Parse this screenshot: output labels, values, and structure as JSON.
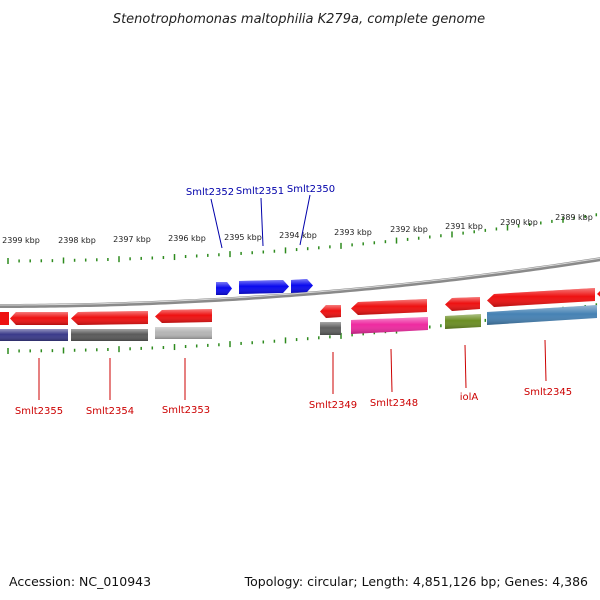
{
  "title": "Stenotrophomonas maltophilia K279a, complete genome",
  "ruler": {
    "tick_color": "#2e8b1e",
    "labels": [
      "2399 kbp",
      "2398 kbp",
      "2397 kbp",
      "2396 kbp",
      "2395 kbp",
      "2394 kbp",
      "2393 kbp",
      "2392 kbp",
      "2391 kbp",
      "2390 kbp",
      "2389 kbp"
    ]
  },
  "backbone_color": "#8a8a8a",
  "genes_upper": [
    {
      "name": "Smlt2352",
      "color": "#0a0aee",
      "label_color": "#0000aa"
    },
    {
      "name": "Smlt2351",
      "color": "#0a0aee",
      "label_color": "#0000aa"
    },
    {
      "name": "Smlt2350",
      "color": "#0a0aee",
      "label_color": "#0000aa"
    }
  ],
  "genes_lower": [
    {
      "name": "Smlt2355",
      "color": "#ee1111",
      "cog_color": "#3a3a8a",
      "label_color": "#cc0000"
    },
    {
      "name": "Smlt2354",
      "color": "#ee1111",
      "cog_color": "#5a5a5a",
      "label_color": "#cc0000"
    },
    {
      "name": "Smlt2353",
      "color": "#ee1111",
      "cog_color": "#b5b5b5",
      "label_color": "#cc0000"
    },
    {
      "name": "Smlt2349",
      "color": "#ee1111",
      "cog_color": "#5f5f5f",
      "label_color": "#cc0000"
    },
    {
      "name": "Smlt2348",
      "color": "#ee1111",
      "cog_color": "#ee2aa0",
      "label_color": "#cc0000"
    },
    {
      "name": "iolA",
      "color": "#ee1111",
      "cog_color": "#6b8e23",
      "label_color": "#cc0000"
    },
    {
      "name": "Smlt2345",
      "color": "#ee1111",
      "cog_color": "#4682b4",
      "label_color": "#cc0000"
    }
  ],
  "accession": "Accession: NC_010943",
  "summary": "Topology: circular; Length: 4,851,126 bp; Genes: 4,386"
}
